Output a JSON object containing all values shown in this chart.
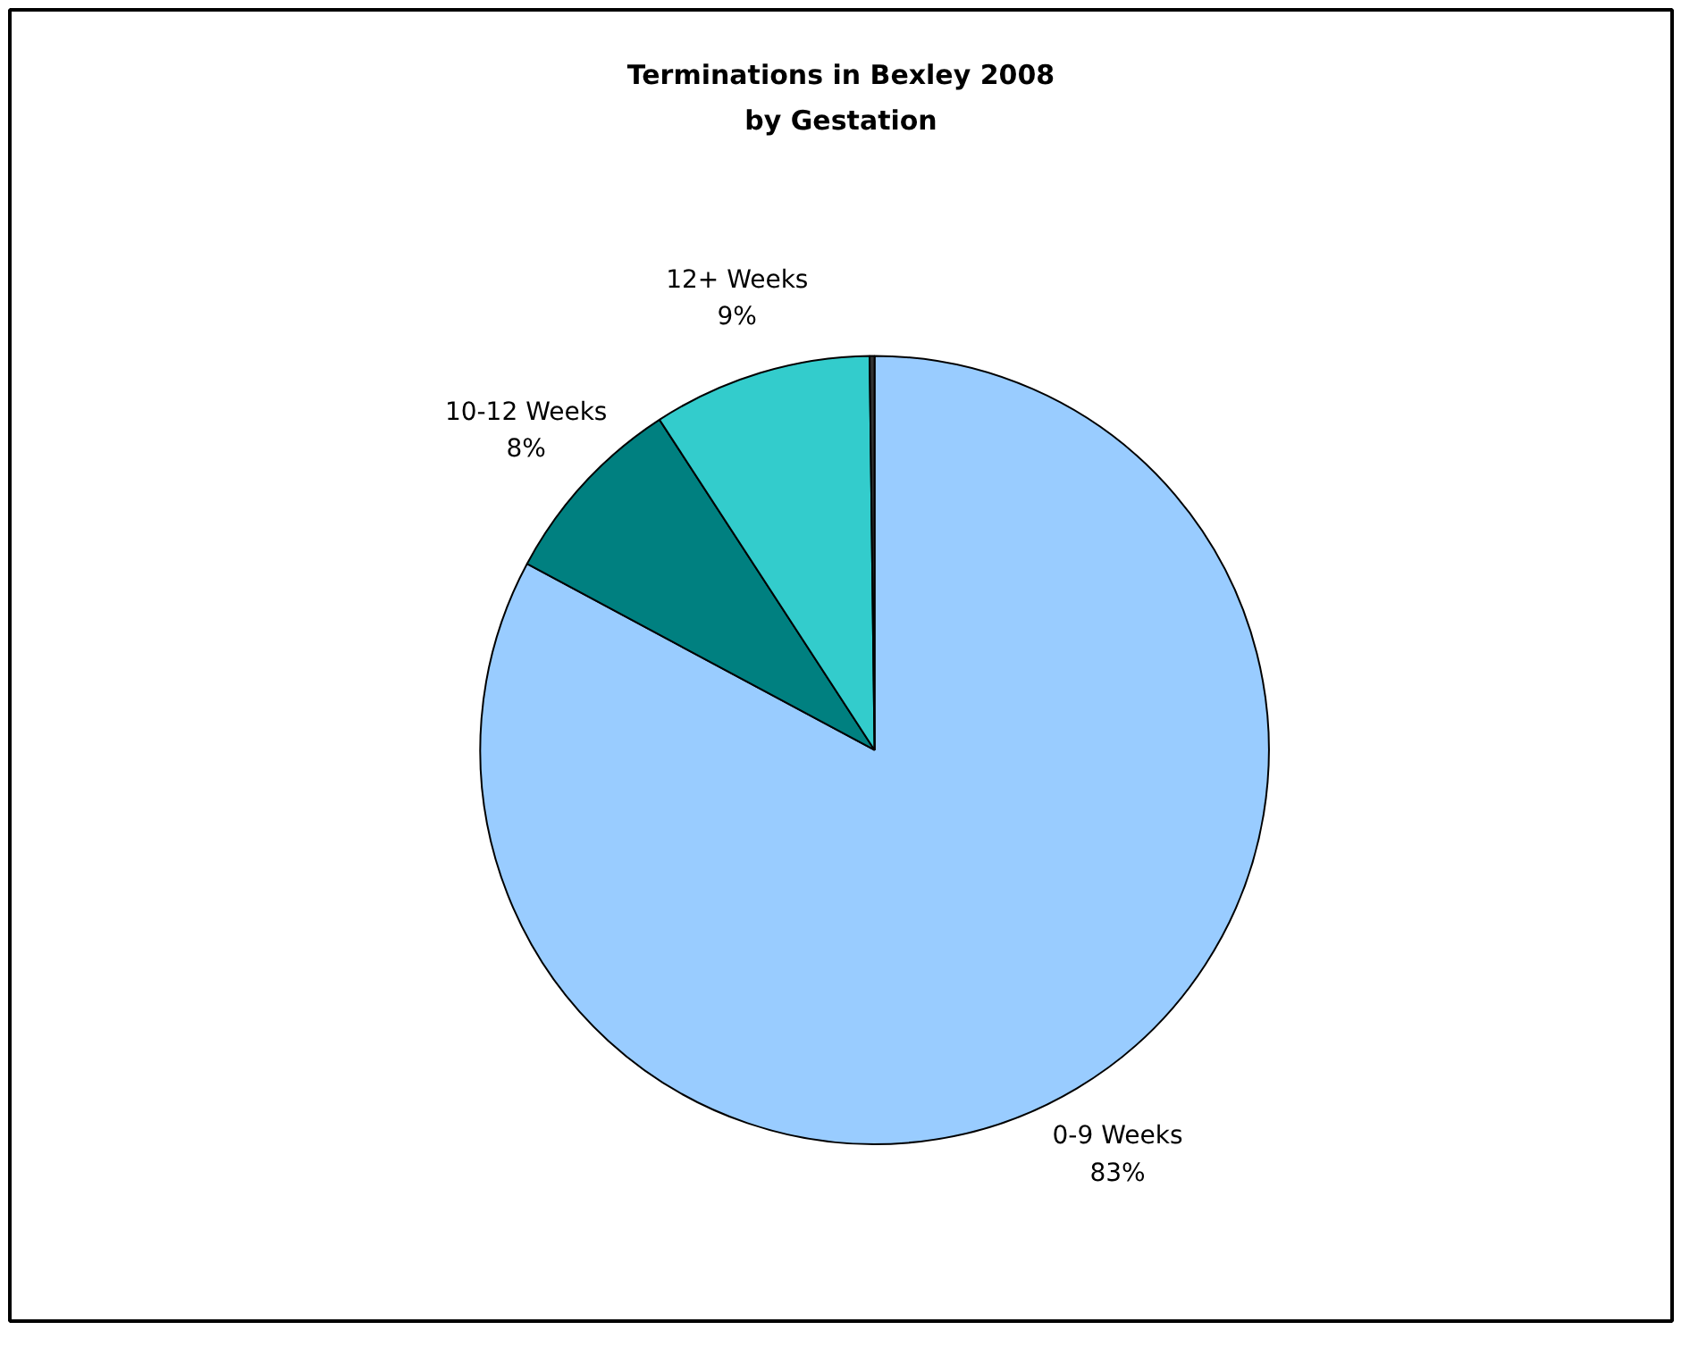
{
  "chart_data": {
    "type": "pie",
    "title": "Terminations in Bexley 2008\nby Gestation",
    "categories": [
      "0-9 Weeks",
      "10-12 Weeks",
      "12+ Weeks",
      null
    ],
    "values": [
      83,
      8,
      9,
      0.2
    ],
    "colors": [
      "#99ccff",
      "#008080",
      "#33cccc",
      "#333333"
    ],
    "value_labels": [
      "83%",
      "8%",
      "9%",
      null
    ]
  }
}
